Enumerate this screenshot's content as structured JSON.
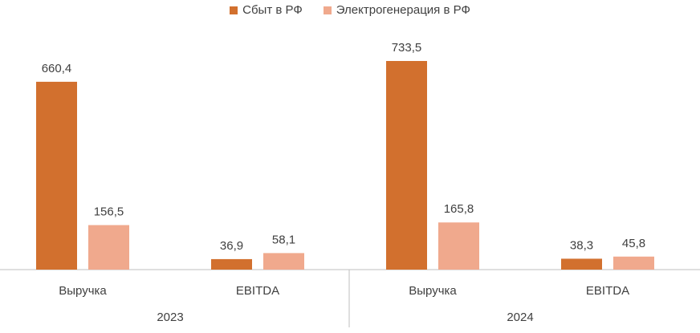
{
  "colors": {
    "series_1": "#D2702E",
    "series_2": "#F0A98D",
    "axis": "#BFBFBF",
    "text": "#404040"
  },
  "chart_data": {
    "type": "bar",
    "legend_position": "top-center",
    "grid": false,
    "ylim": [
      0,
      800
    ],
    "groups": [
      {
        "label": "2023",
        "categories": [
          "Выручка",
          "EBITDA"
        ]
      },
      {
        "label": "2024",
        "categories": [
          "Выручка",
          "EBITDA"
        ]
      }
    ],
    "series": [
      {
        "name": "Сбыт в РФ",
        "values": [
          660.4,
          36.9,
          733.5,
          38.3
        ],
        "labels": [
          "660,4",
          "36,9",
          "733,5",
          "38,3"
        ]
      },
      {
        "name": "Электрогенерация в РФ",
        "values": [
          156.5,
          58.1,
          165.8,
          45.8
        ],
        "labels": [
          "156,5",
          "58,1",
          "165,8",
          "45,8"
        ]
      }
    ]
  }
}
